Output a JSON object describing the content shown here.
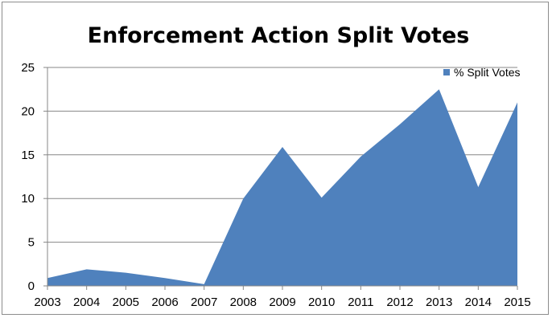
{
  "chart_data": {
    "type": "area",
    "title": "Enforcement Action Split Votes",
    "xlabel": "",
    "ylabel": "",
    "categories": [
      "2003",
      "2004",
      "2005",
      "2006",
      "2007",
      "2008",
      "2009",
      "2010",
      "2011",
      "2012",
      "2013",
      "2014",
      "2015"
    ],
    "series": [
      {
        "name": "% Split Votes",
        "values": [
          0.9,
          1.9,
          1.5,
          0.9,
          0.2,
          10.0,
          15.9,
          10.1,
          14.8,
          18.5,
          22.5,
          11.3,
          21.0
        ],
        "color": "#4f81bd"
      }
    ],
    "ylim": [
      0,
      25
    ],
    "yticks": [
      0,
      5,
      10,
      15,
      20,
      25
    ],
    "grid": "horizontal",
    "legend_position": "top-right"
  }
}
